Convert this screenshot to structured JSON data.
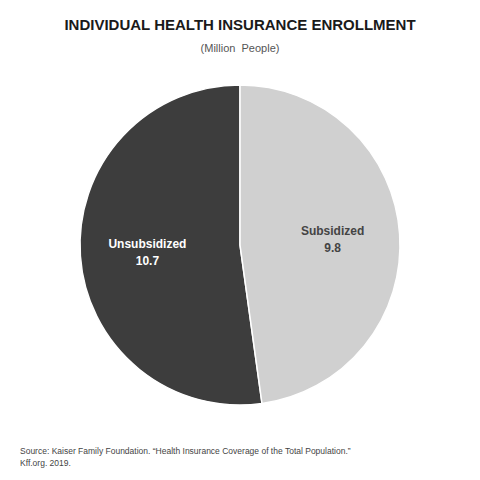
{
  "chart_data": {
    "type": "pie",
    "title": "INDIVIDUAL HEALTH INSURANCE ENROLLMENT",
    "subtitle": "(Million  People)",
    "categories": [
      "Unsubsidized",
      "Subsidized"
    ],
    "values": [
      10.7,
      9.8
    ],
    "colors": [
      "#3d3d3d",
      "#d0d0d0"
    ],
    "data_labels": true,
    "annotations": [
      "Source: Kaiser Family Foundation. “Health Insurance Coverage of the Total Population.”\nKff.org. 2019."
    ]
  }
}
